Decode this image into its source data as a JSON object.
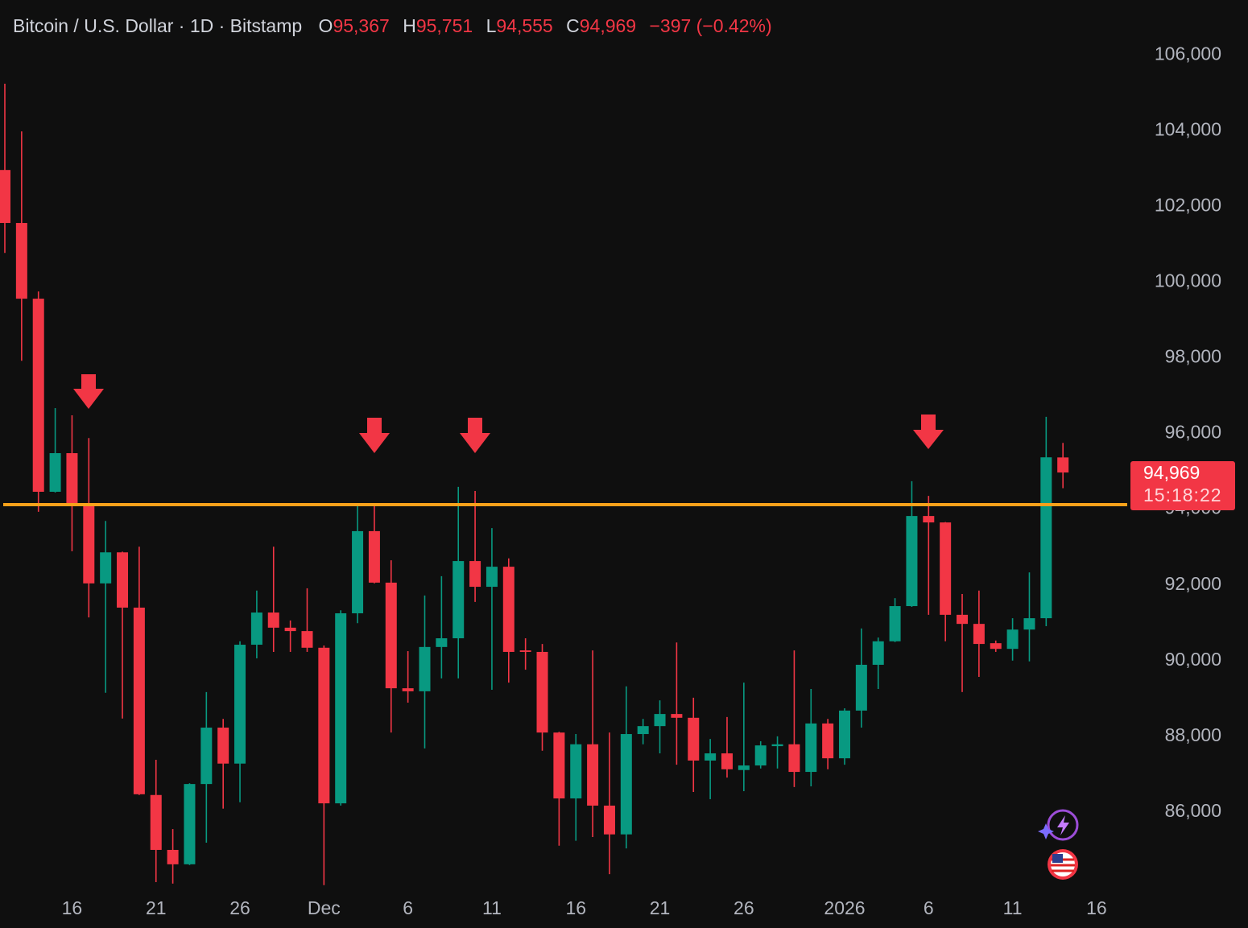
{
  "chart_data": {
    "type": "candlestick",
    "header": {
      "title": "Bitcoin / U.S. Dollar · 1D · Bitstamp",
      "items": [
        {
          "label": "O",
          "value": "95,367"
        },
        {
          "label": "H",
          "value": "95,751"
        },
        {
          "label": "L",
          "value": "94,555"
        },
        {
          "label": "C",
          "value": "94,969"
        }
      ],
      "change": "−397 (−0.42%)"
    },
    "categories": [
      null,
      null,
      null,
      null,
      "16",
      null,
      null,
      null,
      null,
      "21",
      null,
      null,
      null,
      null,
      "26",
      null,
      null,
      null,
      null,
      "Dec",
      null,
      null,
      null,
      null,
      "6",
      null,
      null,
      null,
      null,
      "11",
      null,
      null,
      null,
      null,
      "16",
      null,
      null,
      null,
      null,
      "21",
      null,
      null,
      null,
      null,
      "26",
      null,
      null,
      null,
      null,
      null,
      "2026",
      null,
      null,
      null,
      null,
      "6",
      null,
      null,
      null,
      null,
      "11",
      null,
      null,
      null,
      null,
      "16"
    ],
    "open": [
      102960,
      101560,
      99560,
      94460,
      95480,
      94120,
      92040,
      92860,
      91400,
      86450,
      85000,
      84620,
      86740,
      88230,
      87280,
      90420,
      91270,
      90870,
      90780,
      90340,
      86230,
      91250,
      93420,
      92060,
      89270,
      89190,
      90360,
      90590,
      92630,
      91950,
      92480,
      90270,
      90230,
      88100,
      86360,
      87790,
      86170,
      85410,
      88060,
      88270,
      88590,
      88490,
      87360,
      87550,
      87110,
      87230,
      87740,
      87790,
      87060,
      88340,
      87420,
      88680,
      89890,
      90510,
      91440,
      93820,
      93650,
      91210,
      90970,
      90460,
      90310,
      90820,
      91120,
      95367,
      null,
      null
    ],
    "high": [
      105240,
      103980,
      99750,
      96670,
      96480,
      95880,
      93690,
      92880,
      93010,
      87380,
      85550,
      86760,
      89170,
      88460,
      90510,
      91850,
      93010,
      91060,
      91910,
      90400,
      91330,
      94140,
      94140,
      92650,
      90250,
      91720,
      92230,
      94590,
      94480,
      93500,
      92700,
      90590,
      90440,
      88120,
      88060,
      90270,
      88100,
      89320,
      88460,
      88950,
      90480,
      89020,
      87930,
      88510,
      89420,
      87870,
      88000,
      90270,
      89250,
      88460,
      88740,
      90850,
      90610,
      91650,
      94740,
      94350,
      93660,
      91760,
      91850,
      90530,
      91120,
      92330,
      96440,
      95751,
      null,
      null
    ],
    "low": [
      100770,
      97920,
      93930,
      94440,
      92890,
      91140,
      89150,
      88470,
      86450,
      84150,
      84110,
      84600,
      85190,
      86090,
      86260,
      90060,
      90230,
      90230,
      90230,
      84070,
      86170,
      90990,
      92040,
      88100,
      88890,
      87680,
      89530,
      89530,
      91550,
      89230,
      89420,
      89760,
      87620,
      85110,
      85240,
      85340,
      84360,
      85040,
      87790,
      87550,
      87250,
      86530,
      86340,
      86910,
      86550,
      87150,
      87150,
      86660,
      86680,
      87130,
      87250,
      88230,
      89250,
      90490,
      91420,
      91210,
      90510,
      89170,
      89570,
      90230,
      90000,
      89980,
      90910,
      94555,
      null,
      null
    ],
    "close": [
      101560,
      99560,
      94460,
      95480,
      94120,
      92040,
      92860,
      91400,
      86470,
      85000,
      84620,
      86740,
      88230,
      87280,
      90420,
      91270,
      90870,
      90780,
      90340,
      86230,
      91250,
      93420,
      92060,
      89270,
      89190,
      90360,
      90590,
      92630,
      91950,
      92480,
      90230,
      90230,
      88100,
      86360,
      87790,
      86170,
      85410,
      88060,
      88270,
      88590,
      88490,
      87360,
      87550,
      87130,
      87230,
      87760,
      87790,
      87060,
      88340,
      87420,
      88680,
      89890,
      90510,
      91440,
      93820,
      93650,
      91210,
      90970,
      90440,
      90310,
      90820,
      91120,
      95370,
      94969,
      null,
      null
    ],
    "up_color": "#089981",
    "down_color": "#f23645",
    "ylim": [
      84000,
      107450
    ],
    "yticks": [
      {
        "value": 86000,
        "label": "86,000"
      },
      {
        "value": 88000,
        "label": "88,000"
      },
      {
        "value": 90000,
        "label": "90,000"
      },
      {
        "value": 92000,
        "label": "92,000"
      },
      {
        "value": 94000,
        "label": "94,000"
      },
      {
        "value": 96000,
        "label": "96,000"
      },
      {
        "value": 98000,
        "label": "98,000"
      },
      {
        "value": 100000,
        "label": "100,000"
      },
      {
        "value": 102000,
        "label": "102,000"
      },
      {
        "value": 104000,
        "label": "104,000"
      },
      {
        "value": 106000,
        "label": "106,000"
      }
    ],
    "horizontal_line": {
      "value": 94120,
      "color": "#f7a11a"
    },
    "price_label": "94,969",
    "countdown": "15:18:22"
  }
}
